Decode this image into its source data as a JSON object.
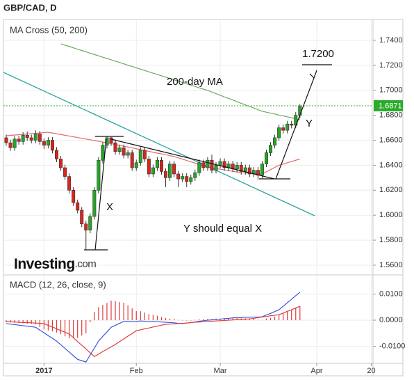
{
  "header": "GBP/CAD, D",
  "logo": {
    "name": "Investing",
    "suffix": ".com"
  },
  "chart_data": [
    {
      "type": "candlestick",
      "title": "MA Cross (50, 200)",
      "open": [
        1.662,
        1.658,
        1.654,
        1.661,
        1.659,
        1.664,
        1.662,
        1.66,
        1.665,
        1.659,
        1.656,
        1.66,
        1.652,
        1.645,
        1.638,
        1.631,
        1.62,
        1.61,
        1.604,
        1.593,
        1.588,
        1.599,
        1.62,
        1.644,
        1.656,
        1.662,
        1.658,
        1.651,
        1.654,
        1.648,
        1.65,
        1.638,
        1.642,
        1.652,
        1.645,
        1.633,
        1.638,
        1.644,
        1.635,
        1.63,
        1.641,
        1.633,
        1.629,
        1.631,
        1.627,
        1.63,
        1.634,
        1.642,
        1.638,
        1.644,
        1.636,
        1.64,
        1.643,
        1.638,
        1.641,
        1.637,
        1.64,
        1.635,
        1.638,
        1.633,
        1.636,
        1.632,
        1.641,
        1.65,
        1.656,
        1.662,
        1.67,
        1.668,
        1.673,
        1.672,
        1.68,
        null,
        null,
        null,
        null,
        null,
        null,
        null,
        null,
        null,
        null,
        null,
        null,
        null,
        null,
        null,
        null,
        null
      ],
      "high": [
        1.6645,
        1.6605,
        1.6635,
        1.6635,
        1.6665,
        1.667,
        1.6645,
        1.668,
        1.6675,
        1.6615,
        1.6625,
        1.6625,
        1.6545,
        1.6475,
        1.6405,
        1.6335,
        1.6225,
        1.6125,
        1.6065,
        1.5955,
        1.6015,
        1.6225,
        1.6465,
        1.6585,
        1.663,
        1.6625,
        1.6605,
        1.6565,
        1.6565,
        1.6525,
        1.6525,
        1.6445,
        1.6545,
        1.6545,
        1.6475,
        1.6405,
        1.6465,
        1.6465,
        1.6375,
        1.6435,
        1.6435,
        1.6355,
        1.6335,
        1.6335,
        1.6325,
        1.6365,
        1.6445,
        1.6445,
        1.6465,
        1.6485,
        1.6425,
        1.6455,
        1.6455,
        1.6435,
        1.6435,
        1.6425,
        1.6425,
        1.6405,
        1.6405,
        1.6385,
        1.6385,
        1.6435,
        1.6525,
        1.6585,
        1.6645,
        1.6725,
        1.6725,
        1.6755,
        1.6755,
        1.6825,
        1.689,
        null,
        null,
        null,
        null,
        null,
        null,
        null,
        null,
        null,
        null,
        null,
        null,
        null,
        null,
        null,
        null,
        null
      ],
      "low": [
        1.6555,
        1.6515,
        1.6515,
        1.6565,
        1.6565,
        1.6595,
        1.6575,
        1.6575,
        1.6565,
        1.653,
        1.6535,
        1.6495,
        1.6425,
        1.6355,
        1.6285,
        1.6175,
        1.6075,
        1.6015,
        1.5905,
        1.5725,
        1.5855,
        1.5965,
        1.6175,
        1.6415,
        1.6535,
        1.6555,
        1.6485,
        1.6485,
        1.6455,
        1.6455,
        1.6355,
        1.6355,
        1.6395,
        1.6425,
        1.6305,
        1.6305,
        1.6355,
        1.6325,
        1.6225,
        1.6275,
        1.6305,
        1.6225,
        1.6265,
        1.6225,
        1.6245,
        1.6275,
        1.6315,
        1.6355,
        1.6355,
        1.6335,
        1.6335,
        1.6375,
        1.6355,
        1.6355,
        1.6345,
        1.6345,
        1.6325,
        1.6325,
        1.6305,
        1.6305,
        1.6285,
        1.6295,
        1.6385,
        1.6475,
        1.6535,
        1.6595,
        1.6655,
        1.6655,
        1.6695,
        1.6695,
        1.6775,
        null,
        null,
        null,
        null,
        null,
        null,
        null,
        null,
        null,
        null,
        null,
        null,
        null,
        null,
        null,
        null,
        null
      ],
      "close": [
        1.658,
        1.654,
        1.661,
        1.659,
        1.664,
        1.662,
        1.66,
        1.665,
        1.659,
        1.656,
        1.66,
        1.652,
        1.645,
        1.638,
        1.631,
        1.62,
        1.61,
        1.604,
        1.593,
        1.588,
        1.599,
        1.62,
        1.644,
        1.656,
        1.662,
        1.658,
        1.651,
        1.654,
        1.648,
        1.65,
        1.638,
        1.642,
        1.652,
        1.645,
        1.633,
        1.638,
        1.644,
        1.635,
        1.63,
        1.641,
        1.633,
        1.629,
        1.631,
        1.627,
        1.63,
        1.634,
        1.642,
        1.638,
        1.644,
        1.636,
        1.64,
        1.643,
        1.638,
        1.641,
        1.637,
        1.64,
        1.635,
        1.638,
        1.633,
        1.636,
        1.632,
        1.641,
        1.65,
        1.656,
        1.662,
        1.67,
        1.668,
        1.673,
        1.672,
        1.68,
        1.6871,
        null,
        null,
        null,
        null,
        null,
        null,
        null,
        null,
        null,
        null,
        null,
        null,
        null,
        null,
        null,
        null,
        null
      ],
      "colors": {
        "up": "#26a526",
        "down": "#d9251d"
      },
      "series": [
        {
          "color": "#e46a6a",
          "values": [
            1.6636,
            1.6639,
            1.6642,
            1.6644,
            1.6647,
            1.665,
            1.6653,
            1.6656,
            1.6658,
            1.6661,
            1.6664,
            1.6658,
            1.6652,
            1.6646,
            1.664,
            1.6634,
            1.6628,
            1.6622,
            1.6616,
            1.661,
            1.6604,
            1.6598,
            1.6592,
            1.6586,
            1.658,
            1.6573,
            1.6566,
            1.6559,
            1.6552,
            1.6546,
            1.6539,
            1.6532,
            1.6525,
            1.6518,
            1.6511,
            1.6504,
            1.6497,
            1.6491,
            1.6484,
            1.6477,
            1.647,
            1.6459,
            1.6449,
            1.6438,
            1.6428,
            1.6417,
            1.6406,
            1.6396,
            1.6385,
            1.6379,
            1.6374,
            1.6368,
            1.6363,
            1.6357,
            1.6351,
            1.6346,
            1.634,
            1.6338,
            1.6336,
            1.6334,
            1.6332,
            1.633,
            1.6348,
            1.6365,
            1.6383,
            1.64,
            1.641,
            1.642,
            1.643,
            1.644,
            1.645,
            null,
            null,
            null,
            null,
            null,
            null,
            null,
            null,
            null,
            null,
            null,
            null,
            null,
            null,
            null,
            null,
            null
          ]
        },
        {
          "name": "200-day MA",
          "color": "#6bab5e",
          "values": [
            null,
            null,
            null,
            null,
            null,
            null,
            null,
            null,
            null,
            null,
            null,
            null,
            null,
            1.7372,
            1.7361,
            1.7351,
            1.734,
            1.7329,
            1.7319,
            1.7308,
            1.7297,
            1.7287,
            1.7276,
            1.7265,
            1.7255,
            1.7244,
            1.7233,
            1.7223,
            1.7212,
            1.7201,
            1.7191,
            1.718,
            1.7169,
            1.7159,
            1.7148,
            1.7137,
            1.7127,
            1.7116,
            1.7105,
            1.7095,
            1.7084,
            1.7073,
            1.7063,
            1.7052,
            1.7041,
            1.7031,
            1.702,
            1.7009,
            1.6999,
            1.6986,
            1.6973,
            1.696,
            1.6947,
            1.6935,
            1.6922,
            1.6909,
            1.6896,
            1.6883,
            1.687,
            1.6858,
            1.6845,
            1.6832,
            1.6825,
            1.6817,
            1.681,
            1.6802,
            1.6795,
            1.6787,
            1.678,
            1.6772,
            1.6765,
            null,
            null,
            null,
            null,
            null,
            null,
            null,
            null,
            null,
            null,
            null,
            null,
            null,
            null,
            null,
            null,
            null
          ]
        }
      ],
      "last_price": 1.6871,
      "annotations": [
        "1.7200",
        "Y",
        "X",
        "Y should equal X"
      ],
      "ylim": [
        1.5533,
        1.7567
      ],
      "yticks": [
        {
          "value": 1.56,
          "label": "1.5600"
        },
        {
          "value": 1.58,
          "label": "1.5800"
        },
        {
          "value": 1.6,
          "label": "1.6000"
        },
        {
          "value": 1.62,
          "label": "1.6200"
        },
        {
          "value": 1.64,
          "label": "1.6400"
        },
        {
          "value": 1.66,
          "label": "1.6600"
        },
        {
          "value": 1.68,
          "label": "1.6800"
        },
        {
          "value": 1.7,
          "label": "1.7000"
        },
        {
          "value": 1.72,
          "label": "1.7200"
        },
        {
          "value": 1.74,
          "label": "1.7400"
        }
      ],
      "grid": true
    },
    {
      "type": "macd",
      "title": "MACD (12, 26, close, 9)",
      "categories": [
        null,
        null,
        null,
        null,
        null,
        null,
        null,
        null,
        null,
        "2017",
        null,
        null,
        null,
        null,
        null,
        null,
        null,
        null,
        null,
        null,
        null,
        null,
        null,
        null,
        null,
        null,
        null,
        null,
        null,
        null,
        null,
        "Feb",
        null,
        null,
        null,
        null,
        null,
        null,
        null,
        null,
        null,
        null,
        null,
        null,
        null,
        null,
        null,
        null,
        null,
        null,
        null,
        "Mar",
        null,
        null,
        null,
        null,
        null,
        null,
        null,
        null,
        null,
        null,
        null,
        null,
        null,
        null,
        null,
        null,
        null,
        null,
        null,
        null,
        null,
        null,
        "Apr",
        null,
        null,
        null,
        null,
        null,
        null,
        null,
        null,
        null,
        null,
        null,
        null,
        "20"
      ],
      "series": [
        {
          "color": "#3a55e0",
          "values": [
            -0.0013,
            -0.0015,
            -0.0017,
            -0.0019,
            -0.0021,
            -0.0023,
            -0.0025,
            -0.0027,
            -0.0038,
            -0.0048,
            -0.0059,
            -0.0069,
            -0.008,
            -0.0094,
            -0.0108,
            -0.0122,
            -0.0136,
            -0.015,
            -0.0155,
            -0.016,
            -0.0133,
            -0.0107,
            -0.008,
            -0.0062,
            -0.0045,
            -0.0027,
            -0.002,
            -0.0012,
            -0.0005,
            -0.0004,
            -0.0006,
            -0.0005,
            -0.0003,
            -0.0004,
            -0.0006,
            -0.0005,
            -0.0006,
            -0.0007,
            -0.0008,
            -0.0009,
            -0.001,
            -0.0012,
            -0.0013,
            -0.0011,
            -0.0009,
            -0.0007,
            -0.0004,
            -0.0002,
            0.0,
            0.0001,
            0.0003,
            0.0004,
            0.0006,
            0.0007,
            0.0009,
            0.001,
            0.001,
            0.0011,
            0.0011,
            0.0012,
            0.0012,
            0.0013,
            0.002,
            0.0026,
            0.0033,
            0.004,
            0.0053,
            0.0067,
            0.008,
            0.0094,
            0.0107,
            null,
            null,
            null,
            null,
            null,
            null,
            null,
            null,
            null,
            null,
            null,
            null,
            null,
            null,
            null,
            null,
            null
          ]
        },
        {
          "color": "#e2393a",
          "values": [
            -0.0005,
            -0.0006,
            -0.0007,
            -0.0008,
            -0.0009,
            -0.0009,
            -0.001,
            -0.0011,
            -0.0012,
            -0.0013,
            -0.002,
            -0.0026,
            -0.0033,
            -0.004,
            -0.0046,
            -0.0053,
            -0.0067,
            -0.0082,
            -0.0096,
            -0.011,
            -0.0125,
            -0.0139,
            -0.013,
            -0.012,
            -0.0111,
            -0.0102,
            -0.0093,
            -0.0082,
            -0.0072,
            -0.0061,
            -0.0051,
            -0.004,
            -0.0037,
            -0.0033,
            -0.003,
            -0.0026,
            -0.0023,
            -0.0019,
            -0.0016,
            -0.0015,
            -0.0014,
            -0.0013,
            -0.0012,
            -0.0011,
            -0.0009,
            -0.0008,
            -0.0007,
            -0.0006,
            -0.0005,
            -0.0004,
            -0.0003,
            -0.0002,
            -0.0001,
            0.0,
            0.0001,
            0.0002,
            0.0003,
            0.0004,
            0.0005,
            0.0007,
            0.001,
            0.0012,
            0.0014,
            0.0017,
            0.0019,
            0.0021,
            0.0027,
            0.0034,
            0.004,
            0.0047,
            0.0053,
            null,
            null,
            null,
            null,
            null,
            null,
            null,
            null,
            null,
            null,
            null,
            null,
            null,
            null,
            null,
            null,
            null
          ]
        }
      ],
      "histogram": {
        "color": "#e2393a",
        "values": [
          -0.0008,
          -0.0009,
          -0.001,
          -0.0011,
          -0.0012,
          -0.0014,
          -0.0015,
          -0.0016,
          -0.0026,
          -0.0035,
          -0.0039,
          -0.0043,
          -0.0047,
          -0.0054,
          -0.0062,
          -0.0069,
          -0.0069,
          -0.0068,
          -0.0059,
          -0.005,
          -0.0008,
          0.0032,
          0.005,
          0.0058,
          0.0066,
          0.0075,
          0.0073,
          0.007,
          0.0067,
          0.0057,
          0.0045,
          0.0035,
          0.0034,
          0.0029,
          0.0024,
          0.0021,
          0.0017,
          0.0012,
          0.0008,
          0.0006,
          0.0004,
          0.0001,
          -0.0001,
          0.0,
          0.0,
          0.0001,
          0.0003,
          0.0004,
          0.0005,
          0.0005,
          0.0006,
          0.0006,
          0.0007,
          0.0007,
          0.0008,
          0.0008,
          0.0007,
          0.0007,
          0.0006,
          0.0005,
          0.0002,
          0.0001,
          0.0006,
          0.0009,
          0.0014,
          0.0019,
          0.0026,
          0.0033,
          0.004,
          0.0047,
          0.0054,
          null,
          null,
          null,
          null,
          null,
          null,
          null,
          null,
          null,
          null,
          null,
          null,
          null,
          null,
          null,
          null,
          null
        ]
      },
      "ylim": [
        -0.0165,
        0.0168
      ],
      "yticks": [
        {
          "value": -0.01,
          "label": "-0.0100"
        },
        {
          "value": 0,
          "label": "0.0000"
        },
        {
          "value": 0.01,
          "label": "0.0100"
        }
      ],
      "grid": true
    }
  ]
}
